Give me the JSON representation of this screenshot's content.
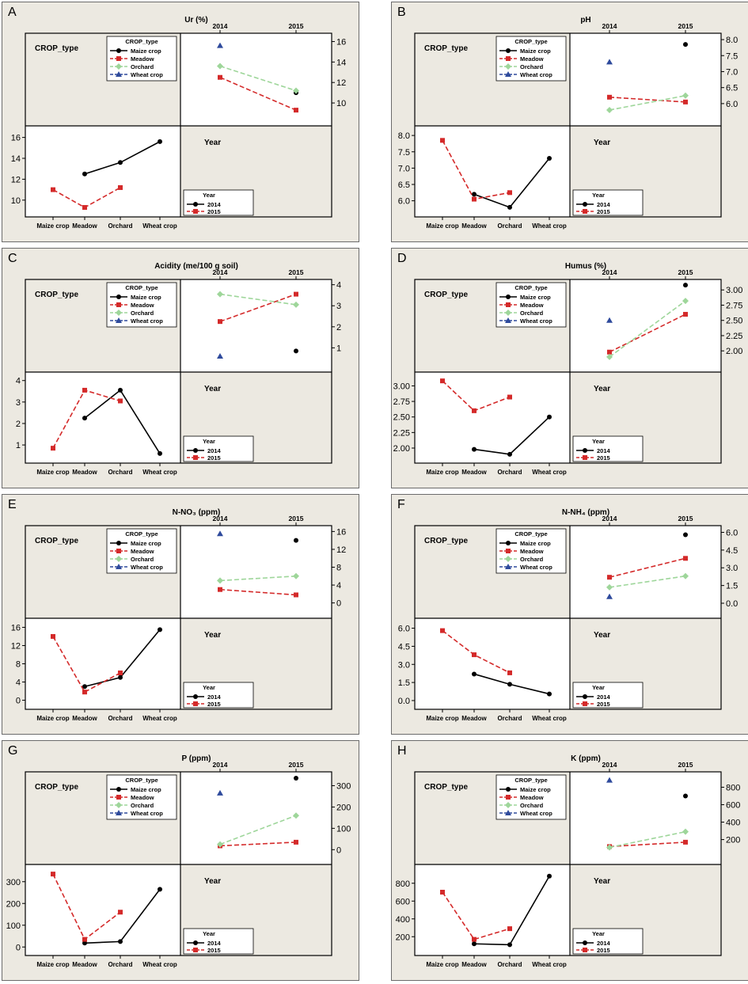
{
  "legend": {
    "crop_title": "CROP_type",
    "year_title": "Year",
    "crop_items": [
      {
        "label": "Maize crop",
        "color": "#000000",
        "marker": "circle",
        "dash": false
      },
      {
        "label": "Meadow",
        "color": "#d42a2a",
        "marker": "square",
        "dash": true
      },
      {
        "label": "Orchard",
        "color": "#9ed69a",
        "marker": "diamond",
        "dash": true
      },
      {
        "label": "Wheat crop",
        "color": "#2e4a9c",
        "marker": "triangle",
        "dash": true
      }
    ],
    "year_items": [
      {
        "label": "2014",
        "color": "#000000",
        "marker": "circle",
        "dash": false
      },
      {
        "label": "2015",
        "color": "#d42a2a",
        "marker": "square",
        "dash": true
      }
    ]
  },
  "labels": {
    "crop_type": "CROP_type",
    "year": "Year",
    "years": [
      "2014",
      "2015"
    ],
    "crops": [
      "Maize crop",
      "Meadow",
      "Orchard",
      "Wheat crop"
    ]
  },
  "chart_data": [
    {
      "type": "line",
      "panel_label": "A",
      "title": "Ur (%)",
      "y_ticks": [
        10,
        12,
        14,
        16
      ],
      "ylim": [
        9.0,
        16.5
      ],
      "ytick_labels": [
        "10",
        "12",
        "14",
        "16"
      ],
      "crop_values": {
        "Maize crop": [
          null,
          11.0
        ],
        "Meadow": [
          12.5,
          9.3
        ],
        "Orchard": [
          13.6,
          11.2
        ],
        "Wheat crop": [
          15.6,
          null
        ]
      }
    },
    {
      "type": "line",
      "panel_label": "B",
      "title": "pH",
      "y_ticks": [
        6.0,
        6.5,
        7.0,
        7.5,
        8.0
      ],
      "ylim": [
        5.7,
        8.1
      ],
      "ytick_labels": [
        "6.0",
        "6.5",
        "7.0",
        "7.5",
        "8.0"
      ],
      "crop_values": {
        "Maize crop": [
          null,
          7.85
        ],
        "Meadow": [
          6.2,
          6.05
        ],
        "Orchard": [
          5.8,
          6.25
        ],
        "Wheat crop": [
          7.3,
          null
        ]
      }
    },
    {
      "type": "line",
      "panel_label": "C",
      "title": "Acidity (me/100 g soil)",
      "y_ticks": [
        1,
        2,
        3,
        4
      ],
      "ylim": [
        0.45,
        4.1
      ],
      "ytick_labels": [
        "1",
        "2",
        "3",
        "4"
      ],
      "crop_values": {
        "Maize crop": [
          null,
          0.85
        ],
        "Meadow": [
          2.25,
          3.55
        ],
        "Orchard": [
          3.55,
          3.05
        ],
        "Wheat crop": [
          0.6,
          null
        ]
      }
    },
    {
      "type": "line",
      "panel_label": "D",
      "title": "Humus (%)",
      "y_ticks": [
        2.0,
        2.25,
        2.5,
        2.75,
        3.0
      ],
      "ylim": [
        1.86,
        3.12
      ],
      "ytick_labels": [
        "2.00",
        "2.25",
        "2.50",
        "2.75",
        "3.00"
      ],
      "crop_values": {
        "Maize crop": [
          null,
          3.08
        ],
        "Meadow": [
          1.98,
          2.6
        ],
        "Orchard": [
          1.9,
          2.82
        ],
        "Wheat crop": [
          2.5,
          null
        ]
      }
    },
    {
      "type": "line",
      "panel_label": "E",
      "title": "N-NO₃ (ppm)",
      "y_ticks": [
        0,
        4,
        8,
        12,
        16
      ],
      "ylim": [
        -0.6,
        16.6
      ],
      "ytick_labels": [
        "0",
        "4",
        "8",
        "12",
        "16"
      ],
      "crop_values": {
        "Maize crop": [
          null,
          14.0
        ],
        "Meadow": [
          3.0,
          1.8
        ],
        "Orchard": [
          5.0,
          6.0
        ],
        "Wheat crop": [
          15.5,
          null
        ]
      }
    },
    {
      "type": "line",
      "panel_label": "F",
      "title": "N-NH₄ (ppm)",
      "y_ticks": [
        0.0,
        1.5,
        3.0,
        4.5,
        6.0
      ],
      "ylim": [
        -0.2,
        6.3
      ],
      "ytick_labels": [
        "0.0",
        "1.5",
        "3.0",
        "4.5",
        "6.0"
      ],
      "crop_values": {
        "Maize crop": [
          null,
          5.8
        ],
        "Meadow": [
          2.2,
          3.8
        ],
        "Orchard": [
          1.35,
          2.3
        ],
        "Wheat crop": [
          0.55,
          null
        ]
      }
    },
    {
      "type": "line",
      "panel_label": "G",
      "title": "P (ppm)",
      "y_ticks": [
        0,
        100,
        200,
        300
      ],
      "ylim": [
        -10,
        350
      ],
      "ytick_labels": [
        "0",
        "100",
        "200",
        "300"
      ],
      "crop_values": {
        "Maize crop": [
          null,
          335
        ],
        "Meadow": [
          18,
          35
        ],
        "Orchard": [
          25,
          160
        ],
        "Wheat crop": [
          265,
          null
        ]
      }
    },
    {
      "type": "line",
      "panel_label": "H",
      "title": "K (ppm)",
      "y_ticks": [
        200,
        400,
        600,
        800
      ],
      "ylim": [
        60,
        940
      ],
      "ytick_labels": [
        "200",
        "400",
        "600",
        "800"
      ],
      "crop_values": {
        "Maize crop": [
          null,
          700
        ],
        "Meadow": [
          120,
          170
        ],
        "Orchard": [
          110,
          290
        ],
        "Wheat crop": [
          880,
          null
        ]
      }
    }
  ]
}
